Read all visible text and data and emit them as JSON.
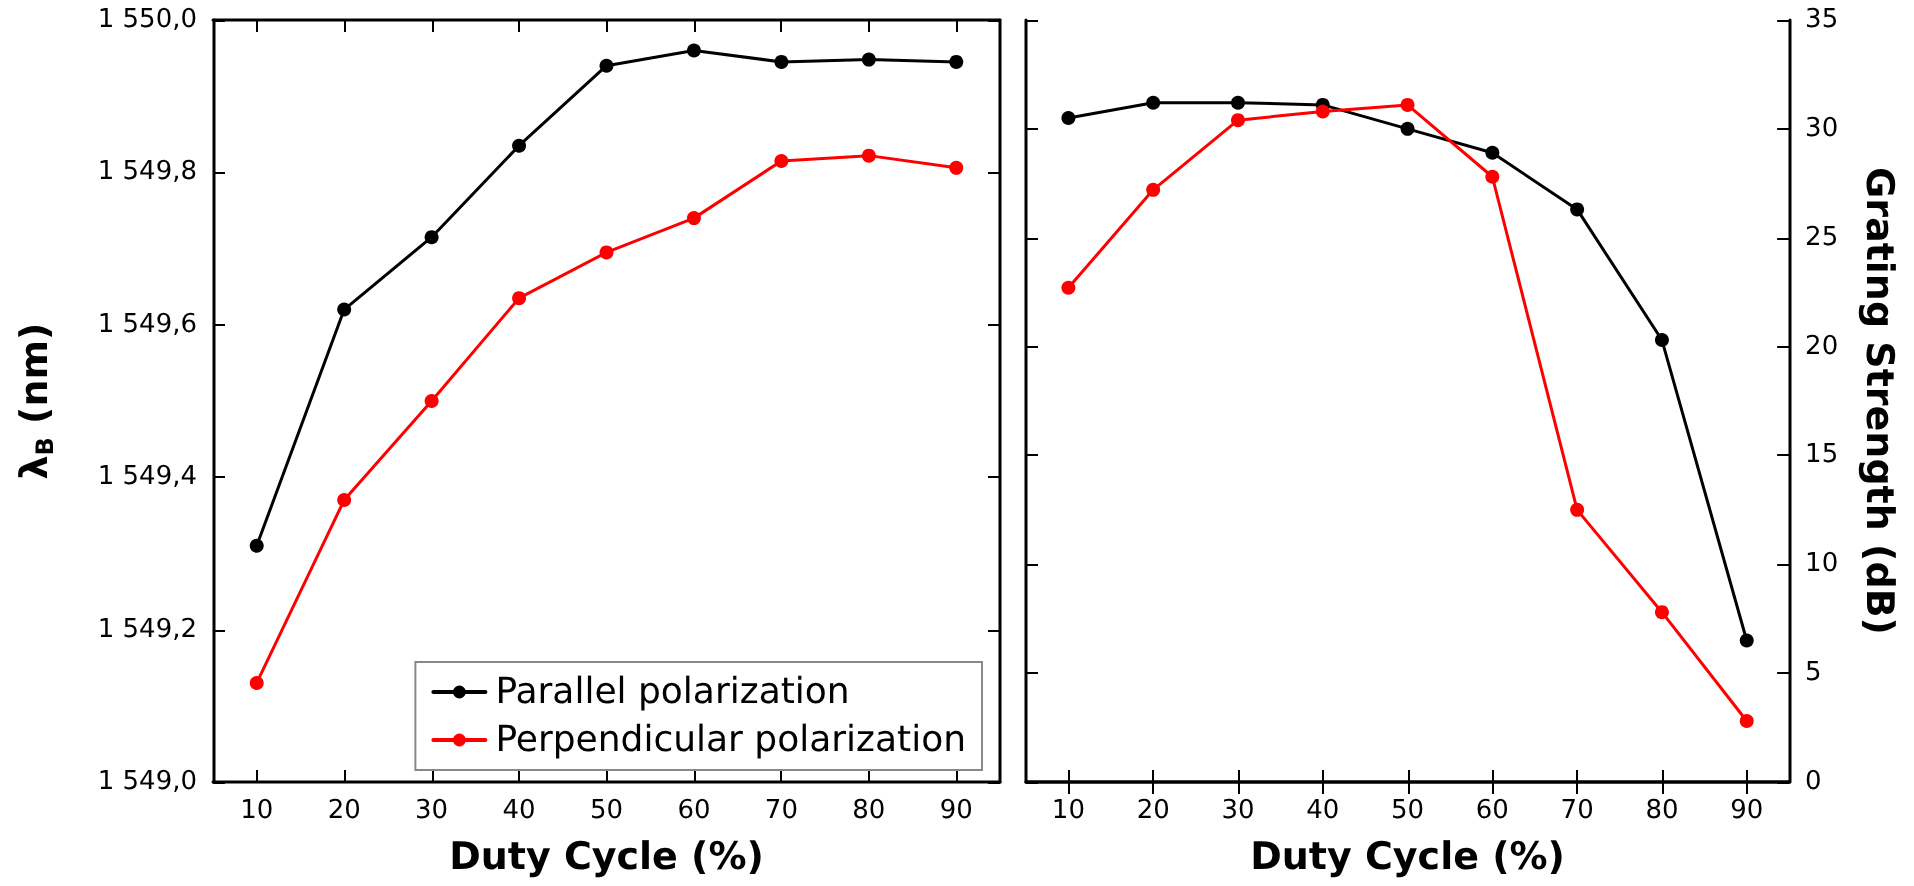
{
  "chart_data": [
    {
      "type": "line",
      "x": [
        10,
        20,
        30,
        40,
        50,
        60,
        70,
        80,
        90
      ],
      "xlabel": "Duty Cycle (%)",
      "ylabel": "λ$_{B}$ (nm)",
      "xlim": [
        5,
        95
      ],
      "xticks": [
        10,
        20,
        30,
        40,
        50,
        60,
        70,
        80,
        90
      ],
      "ylim": [
        1549.0,
        1550.0
      ],
      "yticks": [
        {
          "value": 1549.0,
          "label": "1 549,0"
        },
        {
          "value": 1549.2,
          "label": "1 549,2"
        },
        {
          "value": 1549.4,
          "label": "1 549,4"
        },
        {
          "value": 1549.6,
          "label": "1 549,6"
        },
        {
          "value": 1549.8,
          "label": "1 549,8"
        },
        {
          "value": 1550.0,
          "label": "1 550,0"
        }
      ],
      "marker": "circle",
      "line_style": "solid",
      "grid": false,
      "legend": "bottom right",
      "series": [
        {
          "name": "Parallel polarization",
          "color": "#000000",
          "values": [
            1549.31,
            1549.62,
            1549.715,
            1549.835,
            1549.94,
            1549.96,
            1549.945,
            1549.948,
            1549.945
          ]
        },
        {
          "name": "Perpendicular polarization",
          "color": "#ff0000",
          "values": [
            1549.13,
            1549.37,
            1549.5,
            1549.635,
            1549.695,
            1549.74,
            1549.815,
            1549.822,
            1549.806
          ]
        }
      ]
    },
    {
      "type": "line",
      "x": [
        10,
        20,
        30,
        40,
        50,
        60,
        70,
        80,
        90
      ],
      "xlabel": "Duty Cycle (%)",
      "y2label": "Grating Strength (dB)",
      "xlim": [
        5,
        95
      ],
      "xticks": [
        10,
        20,
        30,
        40,
        50,
        60,
        70,
        80,
        90
      ],
      "y2lim": [
        0,
        35
      ],
      "y2ticks": [
        0,
        5,
        10,
        15,
        20,
        25,
        30,
        35
      ],
      "marker": "circle",
      "line_style": "solid",
      "grid": false,
      "series": [
        {
          "color": "#000000",
          "axis": "y2",
          "values": [
            30.5,
            31.2,
            31.2,
            31.1,
            30.0,
            28.9,
            26.3,
            20.3,
            6.5
          ]
        },
        {
          "color": "#ff0000",
          "axis": "y2",
          "values": [
            22.7,
            27.2,
            30.4,
            30.8,
            31.1,
            27.8,
            12.5,
            7.8,
            2.8
          ]
        }
      ]
    }
  ]
}
